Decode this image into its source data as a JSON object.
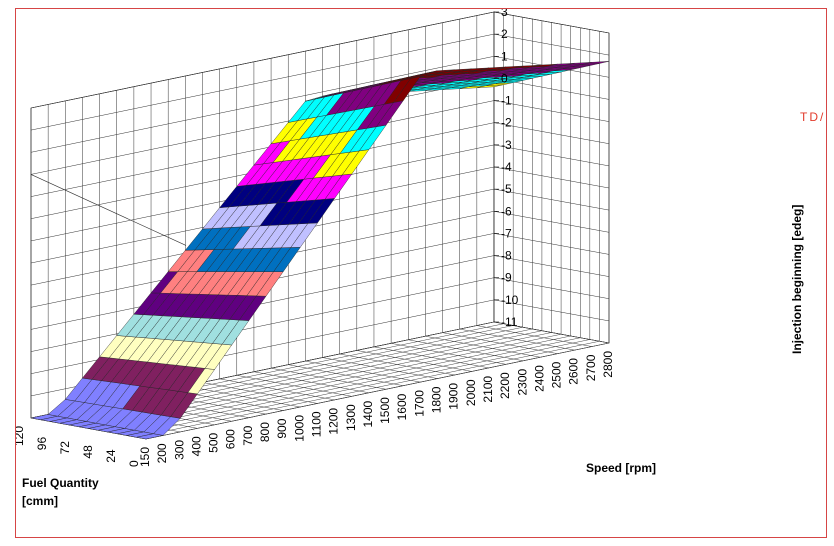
{
  "chart_data": {
    "type": "surface3d",
    "title": "",
    "xlabel": "Speed [rpm]",
    "ylabel": "Fuel Quantity [cmm]",
    "zlabel": "Injection beginning [edeg]",
    "reference_label": "TD/",
    "x": [
      150,
      200,
      300,
      400,
      500,
      600,
      700,
      800,
      900,
      1000,
      1100,
      1200,
      1300,
      1400,
      1500,
      1600,
      1700,
      1800,
      1900,
      2000,
      2100,
      2200,
      2300,
      2400,
      2500,
      2600,
      2700,
      2800
    ],
    "y_ticks": [
      0,
      24,
      48,
      72,
      96,
      120
    ],
    "z_ticks": [
      3,
      2,
      1,
      0,
      -1,
      -2,
      -3,
      -4,
      -5,
      -6,
      -7,
      -8,
      -9,
      -10,
      -11
    ],
    "zlim": [
      -11,
      3
    ],
    "grid": true,
    "color_bands": [
      {
        "range": [
          -11,
          -10
        ],
        "color": "#8080ff"
      },
      {
        "range": [
          -10,
          -9
        ],
        "color": "#802060"
      },
      {
        "range": [
          -9,
          -8
        ],
        "color": "#ffffc0"
      },
      {
        "range": [
          -8,
          -7
        ],
        "color": "#a0e0e0"
      },
      {
        "range": [
          -7,
          -6
        ],
        "color": "#600080"
      },
      {
        "range": [
          -6,
          -5
        ],
        "color": "#ff8080"
      },
      {
        "range": [
          -5,
          -4
        ],
        "color": "#0070c0"
      },
      {
        "range": [
          -4,
          -3
        ],
        "color": "#c0c0ff"
      },
      {
        "range": [
          -3,
          -2
        ],
        "color": "#000080"
      },
      {
        "range": [
          -2,
          -1
        ],
        "color": "#ff00ff"
      },
      {
        "range": [
          -1,
          0
        ],
        "color": "#ffff00"
      },
      {
        "range": [
          0,
          1
        ],
        "color": "#00ffff"
      },
      {
        "range": [
          1,
          2
        ],
        "color": "#800080"
      },
      {
        "range": [
          2,
          3
        ],
        "color": "#800000"
      }
    ]
  }
}
